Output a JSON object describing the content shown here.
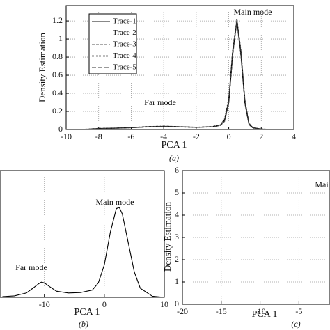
{
  "chart_data": [
    {
      "type": "line",
      "panel": "a",
      "caption": "(a)",
      "x_label": "PCA 1",
      "y_label": "Density Estimation",
      "annotations": [
        "Main mode",
        "Far mode"
      ],
      "x": [
        -9,
        -8,
        -7,
        -6,
        -5,
        -4,
        -3,
        -2,
        -1,
        -0.5,
        -0.25,
        0,
        0.25,
        0.5,
        0.75,
        1,
        1.25,
        1.5,
        2,
        2.5,
        3
      ],
      "series": [
        {
          "name": "Trace-1",
          "color": "#111111",
          "dash": "none",
          "values": [
            0,
            0.01,
            0.015,
            0.02,
            0.03,
            0.035,
            0.03,
            0.025,
            0.03,
            0.05,
            0.1,
            0.3,
            0.85,
            1.2,
            0.85,
            0.3,
            0.06,
            0.02,
            0.005,
            0,
            0
          ]
        },
        {
          "name": "Trace-2",
          "color": "#222222",
          "dash": "1 1",
          "values": [
            0,
            0.012,
            0.016,
            0.022,
            0.032,
            0.034,
            0.028,
            0.024,
            0.032,
            0.055,
            0.12,
            0.35,
            0.9,
            1.18,
            0.8,
            0.28,
            0.05,
            0.015,
            0.004,
            0,
            0
          ]
        },
        {
          "name": "Trace-3",
          "color": "#555555",
          "dash": "4 2",
          "values": [
            0,
            0.008,
            0.014,
            0.02,
            0.028,
            0.036,
            0.031,
            0.026,
            0.028,
            0.045,
            0.09,
            0.28,
            0.82,
            1.21,
            0.88,
            0.33,
            0.07,
            0.02,
            0.006,
            0,
            0
          ]
        },
        {
          "name": "Trace-4",
          "color": "#000000",
          "dash": "1 1",
          "values": [
            0,
            0.011,
            0.015,
            0.021,
            0.031,
            0.036,
            0.03,
            0.025,
            0.031,
            0.05,
            0.11,
            0.32,
            0.87,
            1.22,
            0.84,
            0.29,
            0.055,
            0.018,
            0.005,
            0,
            0
          ]
        },
        {
          "name": "Trace-5",
          "color": "#333333",
          "dash": "6 3",
          "values": [
            0,
            0.009,
            0.015,
            0.02,
            0.029,
            0.034,
            0.03,
            0.025,
            0.029,
            0.048,
            0.1,
            0.31,
            0.86,
            1.19,
            0.86,
            0.31,
            0.06,
            0.02,
            0.005,
            0,
            0
          ]
        }
      ],
      "xlim": [
        -10,
        4
      ],
      "xticks": [
        -10,
        -8,
        -6,
        -4,
        -2,
        0,
        2,
        4
      ],
      "ylim": [
        0,
        1.37
      ],
      "yticks": [
        0,
        0.2,
        0.4,
        0.6,
        0.8,
        1,
        1.2
      ],
      "grid": true,
      "legend": "upper-left"
    },
    {
      "type": "line",
      "panel": "b",
      "caption": "(b)",
      "x_label": "PCA 1",
      "annotations": [
        "Main mode",
        "Far mode"
      ],
      "x": [
        -17,
        -15,
        -13,
        -12,
        -11,
        -10.5,
        -10,
        -9,
        -8,
        -6,
        -4,
        -2,
        -1,
        0,
        1,
        2,
        2.5,
        3,
        4,
        5,
        6,
        8,
        10
      ],
      "series": [
        {
          "color": "#000000",
          "dash": "none",
          "values": [
            0.002,
            0.004,
            0.012,
            0.024,
            0.037,
            0.042,
            0.04,
            0.028,
            0.017,
            0.012,
            0.013,
            0.02,
            0.04,
            0.09,
            0.18,
            0.245,
            0.248,
            0.23,
            0.15,
            0.07,
            0.025,
            0.003,
            0
          ]
        }
      ],
      "xlim": [
        -17.4,
        10
      ],
      "xticks": [
        -10,
        0,
        10
      ],
      "ylim": [
        0,
        0.35
      ],
      "grid": true
    },
    {
      "type": "line",
      "panel": "c",
      "caption": "(c)",
      "x_label": "PCA 1",
      "y_label": "Density Estimation",
      "annotations": [
        "Mai"
      ],
      "x": [
        -17,
        -15,
        -13,
        -11,
        -9,
        -7,
        -5,
        -3,
        -1
      ],
      "series": [
        {
          "color": "#000000",
          "dash": "none",
          "values": [
            0.01,
            0.01,
            0.01,
            0.01,
            0.01,
            0.01,
            0.01,
            0.01,
            0.01
          ]
        }
      ],
      "xlim": [
        -20,
        -1
      ],
      "xticks": [
        -20,
        -15,
        -10,
        -5
      ],
      "ylim": [
        0,
        6
      ],
      "yticks": [
        0,
        1,
        2,
        3,
        4,
        5,
        6
      ],
      "grid": true
    }
  ]
}
